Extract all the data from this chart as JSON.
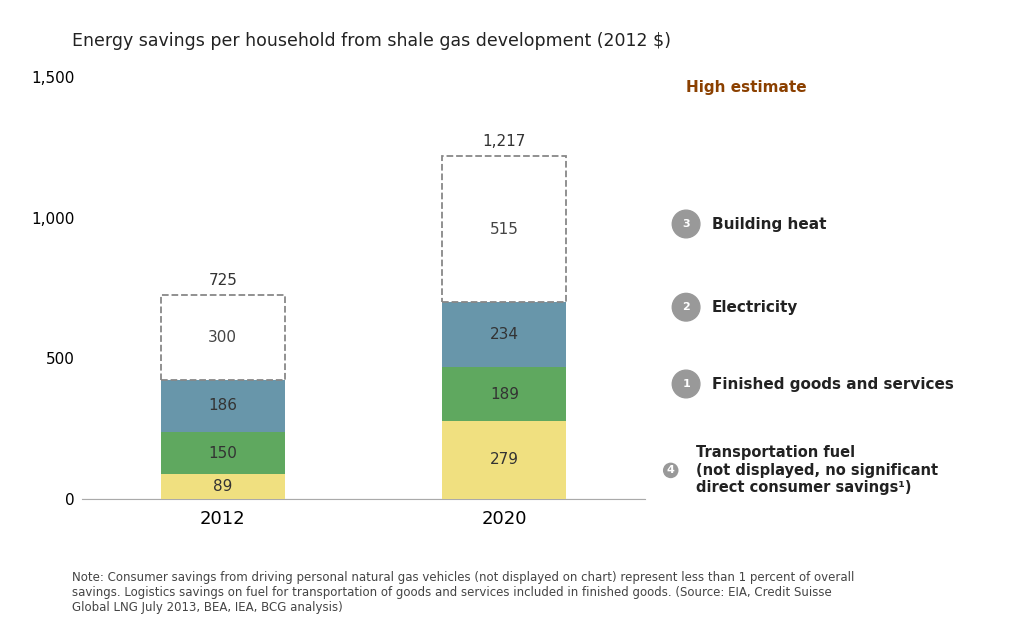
{
  "title": "Energy savings per household from shale gas development (2012 $)",
  "years": [
    "2012",
    "2020"
  ],
  "segments": {
    "finished_goods": {
      "values": [
        89,
        279
      ],
      "color": "#f0e080",
      "label": "Finished goods and services",
      "number": "1"
    },
    "electricity": {
      "values": [
        150,
        189
      ],
      "color": "#5fa85f",
      "label": "Electricity",
      "number": "2"
    },
    "building_heat": {
      "values": [
        186,
        234
      ],
      "color": "#6896aa",
      "label": "Building heat",
      "number": "3"
    }
  },
  "high_estimates": [
    725,
    1217
  ],
  "high_labels": [
    300,
    515
  ],
  "bar_totals": [
    425,
    702
  ],
  "x_positions": [
    0.25,
    0.75
  ],
  "bar_width": 0.22,
  "ylim": [
    0,
    1500
  ],
  "yticks": [
    0,
    500,
    1000,
    1500
  ],
  "background_color": "#ffffff",
  "note": "Note: Consumer savings from driving personal natural gas vehicles (not displayed on chart) represent less than 1 percent of overall\nsavings. Logistics savings on fuel for transportation of goods and services included in finished goods. (Source: EIA, Credit Suisse\nGlobal LNG July 2013, BEA, IEA, BCG analysis)",
  "transport_label": "Transportation fuel\n(not displayed, no significant\ndirect consumer savings¹)",
  "high_estimate_label": "High estimate",
  "high_estimate_color": "#8B4000"
}
